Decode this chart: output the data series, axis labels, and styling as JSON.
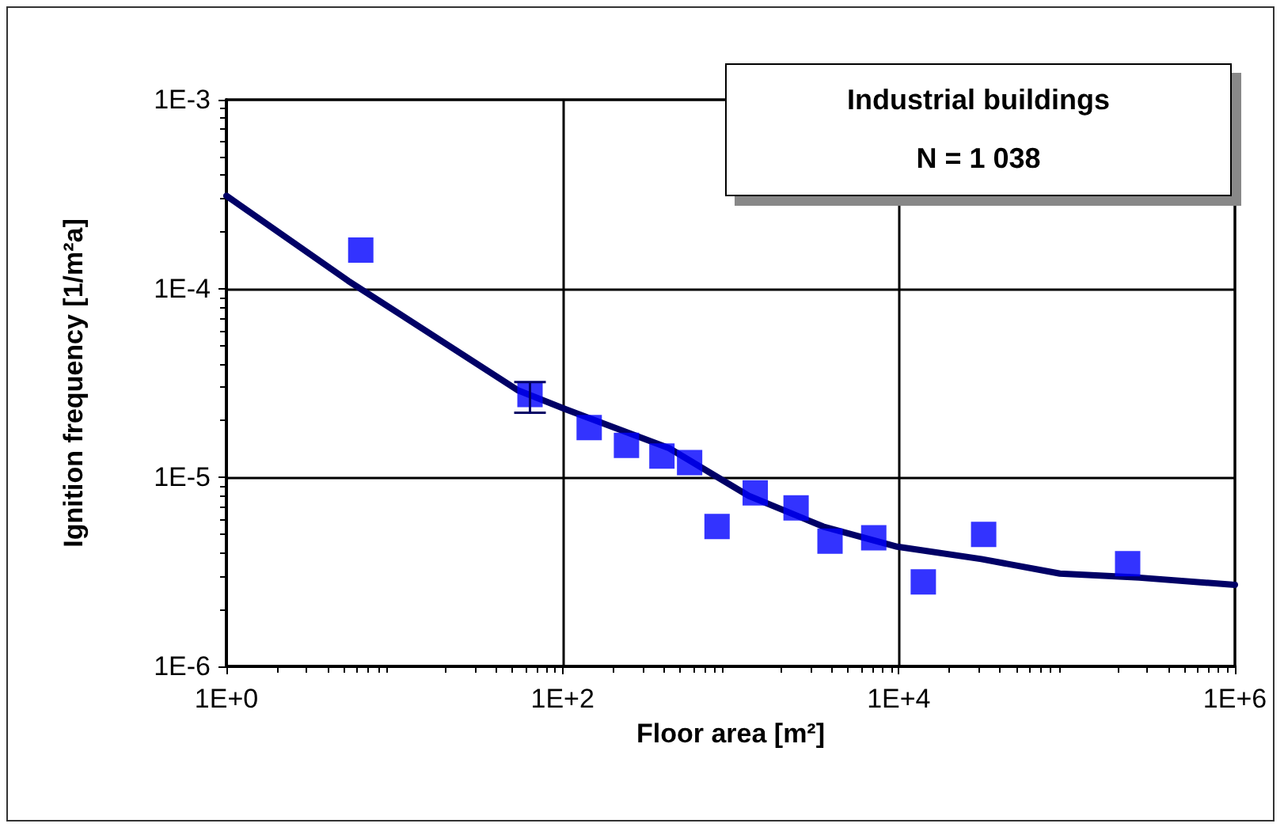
{
  "chart_data": {
    "type": "scatter",
    "xlabel": "Floor area [m²]",
    "ylabel": "Ignition frequency [1/m²a]",
    "annotations": [
      "Industrial buildings",
      "N = 1 038"
    ],
    "log": "xy",
    "grid": true,
    "xlim": [
      1,
      1000000
    ],
    "xticks": [
      {
        "value": 1,
        "label": "1E+0"
      },
      {
        "value": 100,
        "label": "1E+2"
      },
      {
        "value": 10000,
        "label": "1E+4"
      },
      {
        "value": 1000000,
        "label": "1E+6"
      }
    ],
    "ylim": [
      1e-06,
      0.001
    ],
    "yticks": [
      {
        "value": 1e-06,
        "label": "1E-6"
      },
      {
        "value": 1e-05,
        "label": "1E-5"
      },
      {
        "value": 0.0001,
        "label": "1E-4"
      },
      {
        "value": 0.001,
        "label": "1E-3"
      }
    ],
    "series": [
      {
        "color": "#0000ff",
        "marker": "square",
        "x": [
          6.3,
          64,
          144,
          240,
          390,
          570,
          830,
          1400,
          2450,
          3900,
          7100,
          14000,
          32000,
          230000
        ],
        "values": [
          0.00016,
          2.75e-05,
          1.84e-05,
          1.48e-05,
          1.3e-05,
          1.2e-05,
          5.5e-06,
          8.3e-06,
          6.9e-06,
          4.6e-06,
          4.8e-06,
          2.8e-06,
          5e-06,
          3.5e-06
        ],
        "errors": [
          null,
          [
            2.2e-05,
            3.2e-05
          ],
          null,
          null,
          null,
          null,
          null,
          null,
          null,
          null,
          null,
          null,
          null,
          null
        ]
      },
      {
        "type": "line",
        "color": "#000066",
        "marker": "none",
        "line_style": "solid",
        "x": [
          1,
          5.3,
          54,
          104,
          430,
          1280,
          3550,
          9800,
          31000,
          91000,
          270000,
          1000000
        ],
        "values": [
          0.00031,
          0.00011,
          2.9e-05,
          2.3e-05,
          1.43e-05,
          8e-06,
          5.5e-06,
          4.3e-06,
          3.7e-06,
          3.1e-06,
          2.95e-06,
          2.7e-06
        ]
      }
    ]
  }
}
